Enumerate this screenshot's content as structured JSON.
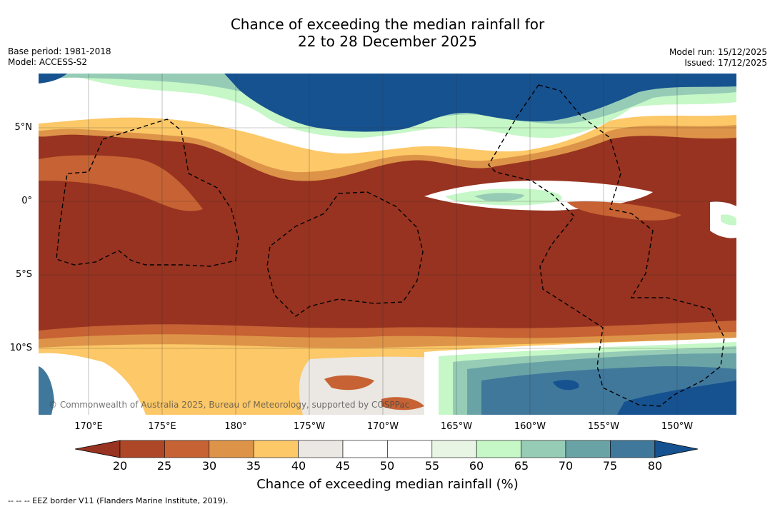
{
  "title_line1": "Chance of exceeding the median rainfall for",
  "title_line2": "22 to 28 December 2025",
  "meta": {
    "base_period": "Base period: 1981-2018",
    "model": "Model: ACCESS-S2",
    "model_run": "Model run: 15/12/2025",
    "issued": "Issued: 17/12/2025"
  },
  "map": {
    "lat_labels": [
      "5°N",
      "0°",
      "5°S",
      "10°S"
    ],
    "lon_labels": [
      "170°E",
      "175°E",
      "180°",
      "175°W",
      "170°W",
      "165°W",
      "160°W",
      "155°W",
      "150°W"
    ],
    "copyright": "© Commonwealth of Australia 2025, Bureau of Meteorology, supported by COSPPac"
  },
  "colorbar": {
    "ticks": [
      "20",
      "25",
      "30",
      "35",
      "40",
      "45",
      "50",
      "55",
      "60",
      "65",
      "70",
      "75",
      "80"
    ],
    "colors": [
      "#973320",
      "#ad4728",
      "#c66233",
      "#de9448",
      "#fcc868",
      "#ebe7e2",
      "#ffffff",
      "#ffffff",
      "#e8f5e4",
      "#c6f7c7",
      "#96ccb6",
      "#6aa3a6",
      "#40789c",
      "#165290"
    ],
    "label": "Chance of exceeding median rainfall (%)"
  },
  "legend_note": "--  --  -- EEZ border V11 (Flanders Marine Institute, 2019)."
}
